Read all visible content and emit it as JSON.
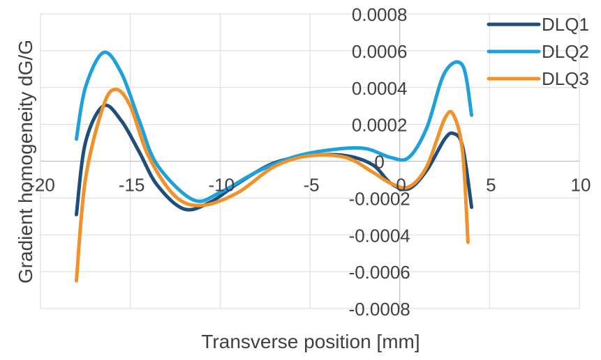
{
  "chart_data": {
    "type": "line",
    "title": "",
    "xlabel": "Transverse position [mm]",
    "ylabel": "Gradient homogeneity dG/G",
    "xlim": [
      -20,
      10
    ],
    "ylim": [
      -0.0008,
      0.0008
    ],
    "x_ticks": [
      -20,
      -15,
      -10,
      -5,
      0,
      5,
      10
    ],
    "y_ticks": [
      0.0008,
      0.0006,
      0.0004,
      0.0002,
      0,
      -0.0002,
      -0.0004,
      -0.0006,
      -0.0008
    ],
    "x_tick_labels": [
      "-20",
      "-15",
      "-10",
      "-5",
      "0",
      "5",
      "10"
    ],
    "y_tick_labels": [
      "0.0008",
      "0.0006",
      "0.0004",
      "0.0002",
      "0",
      "-0.0002",
      "-0.0004",
      "-0.0006",
      "-0.0008"
    ],
    "grid": true,
    "legend_position": "top-right",
    "series": [
      {
        "name": "DLQ1",
        "color": "#1f4e79",
        "x": [
          -18,
          -17.5,
          -16.5,
          -15.5,
          -14.5,
          -13.5,
          -12,
          -10.5,
          -9,
          -7,
          -5,
          -3,
          -1.5,
          -0.5,
          0.5,
          1.5,
          2.5,
          3,
          3.5,
          4
        ],
        "y": [
          -0.00029,
          0.0001,
          0.0003,
          0.00022,
          5e-05,
          -0.00013,
          -0.00026,
          -0.00022,
          -0.00012,
          -1e-05,
          3e-05,
          3e-05,
          -2e-05,
          -0.00012,
          -0.00015,
          -5e-05,
          0.00012,
          0.00015,
          8e-05,
          -0.00025
        ]
      },
      {
        "name": "DLQ2",
        "color": "#1ea0dc",
        "x": [
          -18,
          -17.5,
          -16.5,
          -15.5,
          -14.5,
          -13.5,
          -11.5,
          -10,
          -8,
          -6,
          -4,
          -2,
          -0.5,
          0.5,
          1.5,
          2.5,
          3.5,
          4
        ],
        "y": [
          0.00012,
          0.0004,
          0.00059,
          0.00048,
          0.00022,
          -2e-05,
          -0.00021,
          -0.00017,
          -6e-05,
          2e-05,
          6e-05,
          7e-05,
          2e-05,
          2e-05,
          0.00018,
          0.00048,
          0.00052,
          0.00025
        ]
      },
      {
        "name": "DLQ3",
        "color": "#f0912a",
        "x": [
          -18,
          -17.5,
          -16.5,
          -15.8,
          -15,
          -14,
          -12.5,
          -11,
          -9,
          -7,
          -5,
          -3,
          -1.5,
          -0.5,
          0.5,
          1.5,
          2.5,
          3,
          3.5,
          3.8
        ],
        "y": [
          -0.00065,
          -0.0001,
          0.0003,
          0.00039,
          0.0003,
          3e-05,
          -0.00019,
          -0.00024,
          -0.00017,
          -3e-05,
          3e-05,
          2e-05,
          -6e-05,
          -0.00012,
          -0.00014,
          -3e-05,
          0.00023,
          0.00025,
          5e-05,
          -0.00044
        ]
      }
    ]
  }
}
